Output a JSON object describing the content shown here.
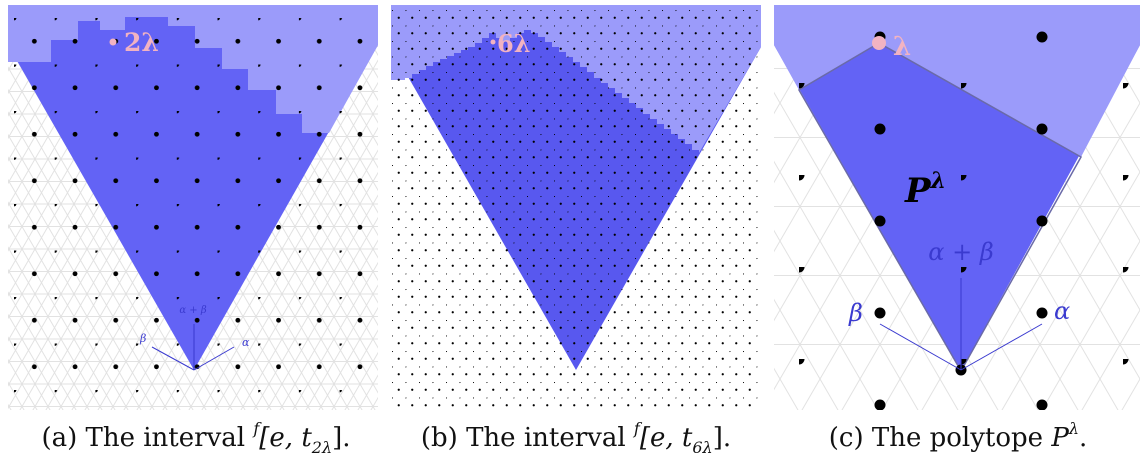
{
  "panels": [
    {
      "id": "a",
      "highlight_label": "2λ",
      "root_alpha": "α",
      "root_beta": "β",
      "root_sum": "α + β",
      "caption": {
        "prefix": "(a) The interval ",
        "sup": "f",
        "body": "[e, t",
        "sub": "2λ",
        "suffix": "]."
      }
    },
    {
      "id": "b",
      "highlight_label": "6λ",
      "caption": {
        "prefix": "(b) The interval ",
        "sup": "f",
        "body": "[e, t",
        "sub": "6λ",
        "suffix": "]."
      }
    },
    {
      "id": "c",
      "highlight_label": "λ",
      "polytope_label": "P",
      "polytope_sup": "λ",
      "root_alpha": "α",
      "root_beta": "β",
      "root_sum": "α + β",
      "caption": {
        "prefix": "(c) The polytope ",
        "body": "P",
        "sup": "λ",
        "suffix": "."
      }
    }
  ],
  "colors": {
    "cone": "#6363f5",
    "interval": "#5858ef",
    "upper_region": "#9b9bfa",
    "highlight": "#f2b3c2",
    "roots": "#3a3acf"
  }
}
